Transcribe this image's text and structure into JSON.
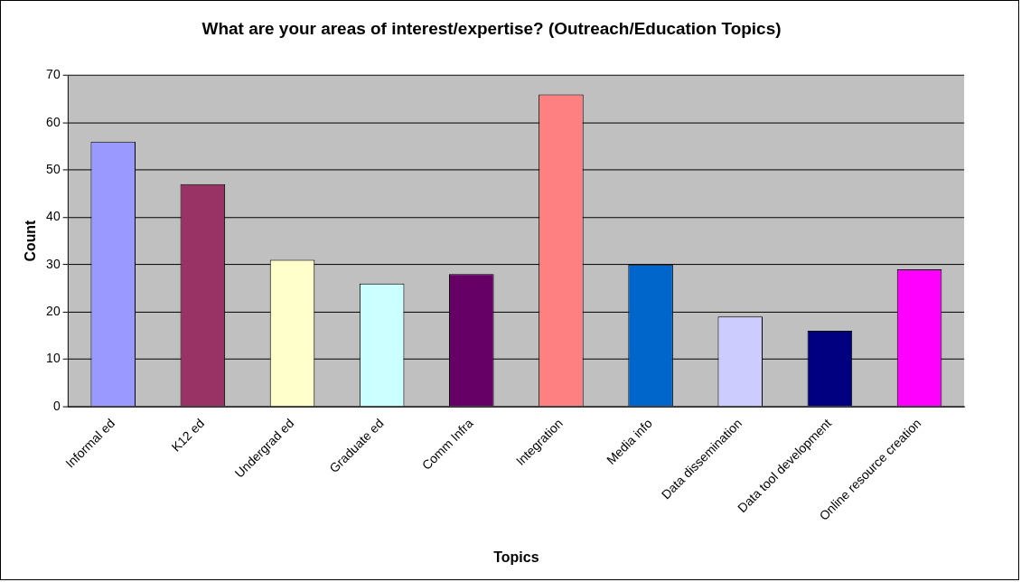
{
  "chart_data": {
    "type": "bar",
    "title": "What are your areas of interest/expertise? (Outreach/Education Topics)",
    "xlabel": "Topics",
    "ylabel": "Count",
    "categories": [
      "Informal ed",
      "K12 ed",
      "Undergrad ed",
      "Graduate ed",
      "Comm Infra",
      "Integration",
      "Media info",
      "Data dissemination",
      "Data tool development",
      "Online resource creation"
    ],
    "values": [
      56,
      47,
      31,
      26,
      28,
      66,
      30,
      19,
      16,
      29
    ],
    "colors": [
      "#9999ff",
      "#993366",
      "#ffffcc",
      "#ccffff",
      "#660066",
      "#ff8080",
      "#0066cc",
      "#ccccff",
      "#000080",
      "#ff00ff"
    ],
    "ylim": [
      0,
      70
    ],
    "yticks": [
      0,
      10,
      20,
      30,
      40,
      50,
      60,
      70
    ],
    "grid": "y",
    "legend": false
  }
}
